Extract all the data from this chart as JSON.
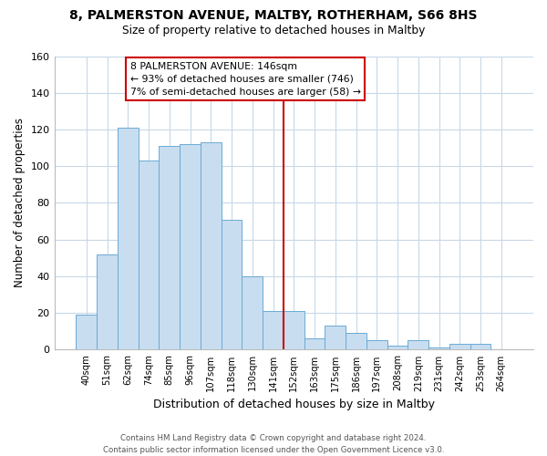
{
  "title1": "8, PALMERSTON AVENUE, MALTBY, ROTHERHAM, S66 8HS",
  "title2": "Size of property relative to detached houses in Maltby",
  "xlabel": "Distribution of detached houses by size in Maltby",
  "ylabel": "Number of detached properties",
  "bar_labels": [
    "40sqm",
    "51sqm",
    "62sqm",
    "74sqm",
    "85sqm",
    "96sqm",
    "107sqm",
    "118sqm",
    "130sqm",
    "141sqm",
    "152sqm",
    "163sqm",
    "175sqm",
    "186sqm",
    "197sqm",
    "208sqm",
    "219sqm",
    "231sqm",
    "242sqm",
    "253sqm",
    "264sqm"
  ],
  "bar_values": [
    19,
    52,
    121,
    103,
    111,
    112,
    113,
    71,
    40,
    21,
    21,
    6,
    13,
    9,
    5,
    2,
    5,
    1,
    3,
    3,
    0
  ],
  "bar_color": "#c8ddf0",
  "bar_edge_color": "#6aaad4",
  "vline_x": 9.5,
  "vline_color": "#cc0000",
  "annotation_line1": "8 PALMERSTON AVENUE: 146sqm",
  "annotation_line2": "← 93% of detached houses are smaller (746)",
  "annotation_line3": "7% of semi-detached houses are larger (58) →",
  "annotation_box_color": "#ffffff",
  "annotation_box_edge": "#cc0000",
  "ylim": [
    0,
    160
  ],
  "yticks": [
    0,
    20,
    40,
    60,
    80,
    100,
    120,
    140,
    160
  ],
  "grid_color": "#c8d8e8",
  "bg_color": "#ffffff",
  "plot_bg_color": "#ffffff",
  "footer": "Contains HM Land Registry data © Crown copyright and database right 2024.\nContains public sector information licensed under the Open Government Licence v3.0."
}
